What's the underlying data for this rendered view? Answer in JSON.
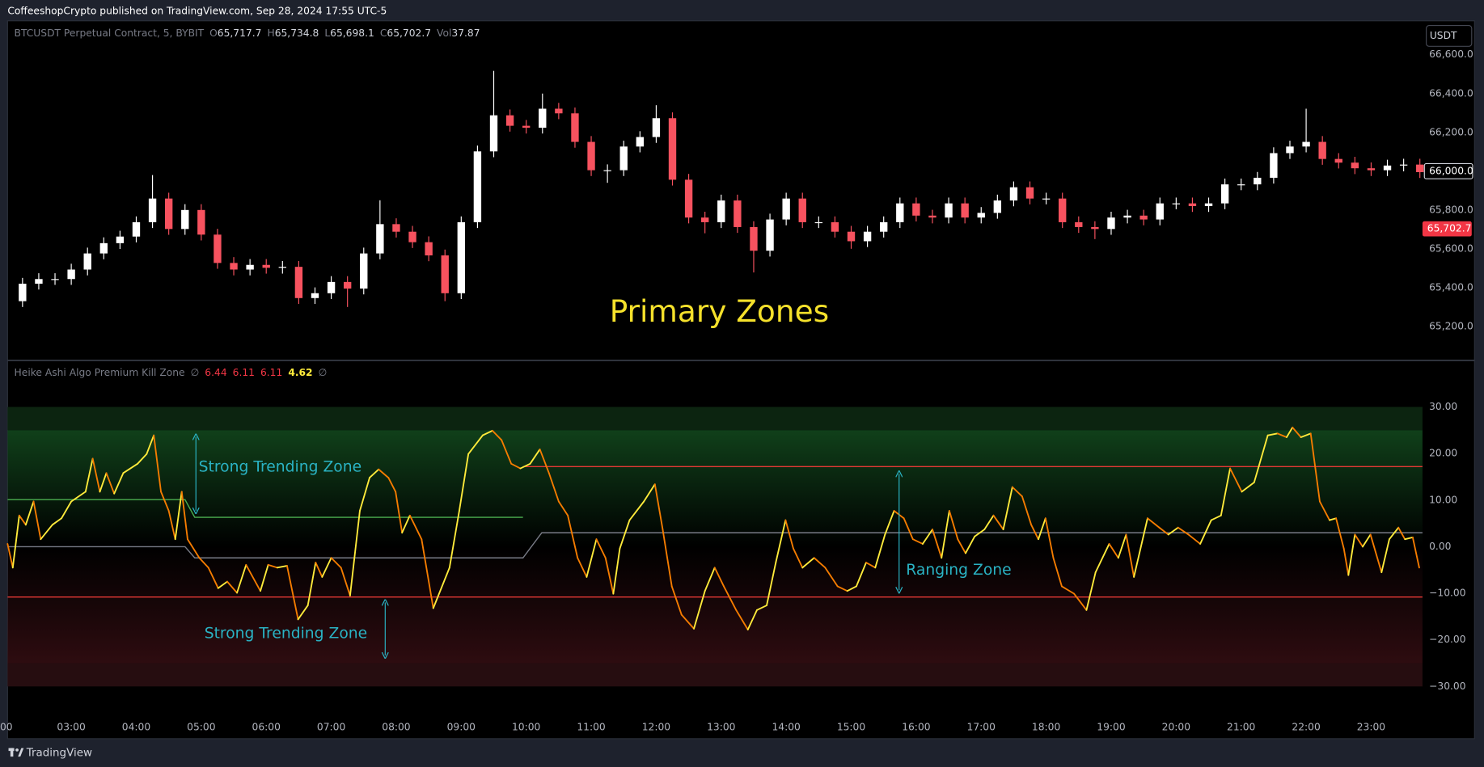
{
  "header": {
    "title": "CoffeeshopCrypto published on TradingView.com, Sep 28, 2024 17:55 UTC-5"
  },
  "footer": {
    "brand": "TradingView"
  },
  "chart_data": [
    {
      "type": "candlestick",
      "symbol": "BTCUSDT Perpetual Contract, 5, BYBIT",
      "ohlc_legend": [
        {
          "label": "O",
          "value": "65,717.7"
        },
        {
          "label": "H",
          "value": "65,734.8"
        },
        {
          "label": "L",
          "value": "65,698.1"
        },
        {
          "label": "C",
          "value": "65,702.7"
        },
        {
          "label": "Vol",
          "value": "37.87"
        }
      ],
      "currency": "USDT",
      "annotation": "Primary Zones",
      "annotation_color": "#f5e12b",
      "up_color": "#ffffff",
      "down_color": "#f7525f",
      "x": [
        2.25,
        2.5,
        2.75,
        3,
        3.25,
        3.5,
        3.75,
        4,
        4.25,
        4.5,
        4.75,
        5,
        5.25,
        5.5,
        5.75,
        6,
        6.25,
        6.5,
        6.75,
        7,
        7.25,
        7.5,
        7.75,
        8,
        8.25,
        8.5,
        8.75,
        9,
        9.25,
        9.5,
        9.75,
        10,
        10.25,
        10.5,
        10.75,
        11,
        11.25,
        11.5,
        11.75,
        12,
        12.25,
        12.5,
        12.75,
        13,
        13.25,
        13.5,
        13.75,
        14,
        14.25,
        14.5,
        14.75,
        15,
        15.25,
        15.5,
        15.75,
        16,
        16.25,
        16.5,
        16.75,
        17,
        17.25,
        17.5,
        17.75,
        18,
        18.25,
        18.5,
        18.75,
        19,
        19.25,
        19.5,
        19.75,
        20,
        20.25,
        20.5,
        20.75,
        21,
        21.25,
        21.5,
        21.75,
        22,
        22.25,
        22.5,
        22.75,
        23,
        23.25,
        23.5,
        23.75
      ],
      "open": [
        65330,
        65420,
        65444,
        65444,
        65493,
        65576,
        65629,
        65663,
        65737,
        65859,
        65702,
        65800,
        65673,
        65527,
        65493,
        65517,
        65502,
        65507,
        65346,
        65371,
        65429,
        65395,
        65576,
        65727,
        65688,
        65634,
        65566,
        65371,
        65737,
        66102,
        66288,
        66234,
        66224,
        66322,
        66298,
        66151,
        66005,
        66005,
        66127,
        66176,
        66273,
        65956,
        65761,
        65737,
        65849,
        65712,
        65590,
        65751,
        65859,
        65737,
        65737,
        65688,
        65639,
        65688,
        65737,
        65834,
        65771,
        65761,
        65834,
        65761,
        65785,
        65849,
        65917,
        65859,
        65859,
        65737,
        65712,
        65702,
        65761,
        65771,
        65751,
        65834,
        65834,
        65820,
        65834,
        65932,
        65932,
        65966,
        66093,
        66127,
        66151,
        66063,
        66044,
        66015,
        66005,
        66029,
        66034
      ],
      "high": [
        65450,
        65474,
        65474,
        65523,
        65606,
        65659,
        65693,
        65767,
        65980,
        65889,
        65830,
        65830,
        65703,
        65557,
        65547,
        65547,
        65537,
        65537,
        65401,
        65459,
        65459,
        65606,
        65850,
        65757,
        65718,
        65664,
        65596,
        65767,
        66132,
        66517,
        66318,
        66264,
        66400,
        66352,
        66328,
        66181,
        66035,
        66157,
        66206,
        66340,
        66303,
        65986,
        65791,
        65879,
        65879,
        65742,
        65781,
        65889,
        65889,
        65767,
        65767,
        65718,
        65718,
        65767,
        65864,
        65864,
        65801,
        65864,
        65864,
        65815,
        65879,
        65947,
        65947,
        65889,
        65889,
        65767,
        65742,
        65791,
        65801,
        65801,
        65864,
        65864,
        65864,
        65864,
        65962,
        65962,
        65996,
        66123,
        66157,
        66322,
        66181,
        66093,
        66074,
        66045,
        66059,
        66064,
        66064
      ],
      "low": [
        65300,
        65390,
        65414,
        65414,
        65463,
        65546,
        65599,
        65633,
        65707,
        65672,
        65672,
        65643,
        65497,
        65463,
        65463,
        65472,
        65472,
        65316,
        65316,
        65341,
        65300,
        65365,
        65546,
        65658,
        65604,
        65536,
        65330,
        65341,
        65707,
        66072,
        66204,
        66194,
        66194,
        66268,
        66121,
        65975,
        65940,
        65975,
        66097,
        66146,
        65926,
        65731,
        65680,
        65707,
        65682,
        65478,
        65560,
        65721,
        65707,
        65707,
        65658,
        65600,
        65609,
        65658,
        65707,
        65741,
        65731,
        65731,
        65731,
        65731,
        65755,
        65819,
        65829,
        65829,
        65707,
        65682,
        65650,
        65672,
        65731,
        65721,
        65721,
        65804,
        65790,
        65790,
        65804,
        65902,
        65902,
        65936,
        66063,
        66097,
        66033,
        66014,
        65985,
        65975,
        65975,
        65999,
        65965
      ],
      "close": [
        65420,
        65444,
        65444,
        65493,
        65576,
        65629,
        65663,
        65737,
        65859,
        65702,
        65800,
        65673,
        65527,
        65493,
        65517,
        65502,
        65507,
        65346,
        65371,
        65429,
        65395,
        65576,
        65727,
        65688,
        65634,
        65566,
        65371,
        65737,
        66102,
        66288,
        66234,
        66224,
        66322,
        66298,
        66151,
        66005,
        66005,
        66127,
        66176,
        66273,
        65956,
        65761,
        65737,
        65849,
        65712,
        65590,
        65751,
        65859,
        65737,
        65737,
        65688,
        65639,
        65688,
        65737,
        65834,
        65771,
        65761,
        65834,
        65761,
        65785,
        65849,
        65917,
        65859,
        65859,
        65737,
        65712,
        65702,
        65761,
        65771,
        65751,
        65834,
        65834,
        65820,
        65834,
        65932,
        65932,
        65966,
        66093,
        66127,
        66151,
        66063,
        66044,
        66015,
        66005,
        66029,
        66034,
        65995
      ],
      "xlim": [
        2.02,
        23.79
      ],
      "ylim": [
        65030,
        66775
      ],
      "yticks": [
        {
          "value": 66600,
          "label": "66,600.0"
        },
        {
          "value": 66400,
          "label": "66,400.0"
        },
        {
          "value": 66200,
          "label": "66,200.0"
        },
        {
          "value": 66000,
          "label": "66,000.0",
          "boxed": true
        },
        {
          "value": 65800,
          "label": "65,800.0"
        },
        {
          "value": 65600,
          "label": "65,600.0"
        },
        {
          "value": 65400,
          "label": "65,400.0"
        },
        {
          "value": 65200,
          "label": "65,200.0"
        }
      ],
      "last_price": {
        "value": 65702.7,
        "label": "65,702.7",
        "color": "#f23645"
      }
    },
    {
      "type": "line",
      "title": "Heike Ashi Algo Premium Kill Zone",
      "empty_symbol": "∅",
      "legend_values": [
        6.44,
        6.11,
        6.11,
        4.62
      ],
      "legend_colors": [
        "#f23645",
        "#f23645",
        "#f23645",
        "#ffeb3b"
      ],
      "annotations": [
        "Strong Trending Zone",
        "Strong Trending Zone",
        "Ranging Zone"
      ],
      "annotation_color": "#2ab3c4",
      "up_color": "#ffeb3b",
      "down_color": "#f57c00",
      "x": [
        2.02,
        2.1,
        2.2,
        2.3,
        2.42,
        2.53,
        2.71,
        2.85,
        3.0,
        3.22,
        3.33,
        3.44,
        3.54,
        3.66,
        3.8,
        4.02,
        4.16,
        4.27,
        4.38,
        4.5,
        4.6,
        4.7,
        4.79,
        4.97,
        5.11,
        5.26,
        5.4,
        5.55,
        5.69,
        5.91,
        6.03,
        6.17,
        6.32,
        6.49,
        6.64,
        6.76,
        6.86,
        7.0,
        7.15,
        7.29,
        7.44,
        7.59,
        7.73,
        7.88,
        7.99,
        8.09,
        8.21,
        8.39,
        8.57,
        8.82,
        8.97,
        9.11,
        9.33,
        9.48,
        9.62,
        9.77,
        9.91,
        10.06,
        10.21,
        10.35,
        10.5,
        10.64,
        10.79,
        10.93,
        11.08,
        11.22,
        11.34,
        11.44,
        11.59,
        11.81,
        11.98,
        12.1,
        12.24,
        12.39,
        12.58,
        12.75,
        12.9,
        13.04,
        13.23,
        13.41,
        13.55,
        13.7,
        13.84,
        13.99,
        14.11,
        14.25,
        14.43,
        14.6,
        14.79,
        14.94,
        15.08,
        15.23,
        15.37,
        15.52,
        15.66,
        15.81,
        15.95,
        16.1,
        16.25,
        16.39,
        16.51,
        16.64,
        16.76,
        16.9,
        17.05,
        17.19,
        17.34,
        17.48,
        17.63,
        17.77,
        17.88,
        17.99,
        18.11,
        18.24,
        18.43,
        18.62,
        18.76,
        18.97,
        19.11,
        19.23,
        19.35,
        19.56,
        19.74,
        19.88,
        20.03,
        20.19,
        20.37,
        20.54,
        20.69,
        20.83,
        21.01,
        21.2,
        21.41,
        21.56,
        21.7,
        21.79,
        21.92,
        22.07,
        22.21,
        22.36,
        22.46,
        22.58,
        22.65,
        22.75,
        22.87,
        22.99,
        23.16,
        23.28,
        23.42,
        23.52,
        23.64,
        23.74
      ],
      "values": [
        0.6,
        -4.5,
        6.7,
        4.7,
        9.7,
        1.6,
        4.7,
        6.1,
        9.7,
        11.8,
        18.9,
        11.8,
        15.8,
        11.4,
        15.8,
        17.8,
        19.9,
        23.9,
        11.8,
        7.7,
        1.6,
        11.8,
        1.6,
        -2.4,
        -4.5,
        -8.9,
        -7.5,
        -9.9,
        -3.9,
        -9.5,
        -3.9,
        -4.5,
        -4.1,
        -15.6,
        -12.6,
        -3.4,
        -6.5,
        -2.4,
        -4.5,
        -10.5,
        7.7,
        14.8,
        16.6,
        14.8,
        11.8,
        3.0,
        6.7,
        1.6,
        -13.2,
        -4.5,
        7.7,
        19.9,
        23.9,
        24.9,
        22.9,
        17.8,
        16.8,
        17.8,
        20.9,
        15.8,
        9.7,
        6.7,
        -2.4,
        -6.5,
        1.6,
        -2.4,
        -10.1,
        -0.4,
        5.7,
        9.7,
        13.4,
        3.7,
        -8.5,
        -14.6,
        -17.6,
        -9.5,
        -4.5,
        -8.5,
        -13.6,
        -17.8,
        -13.6,
        -12.6,
        -3.4,
        5.7,
        -0.4,
        -4.5,
        -2.4,
        -4.5,
        -8.5,
        -9.5,
        -8.5,
        -3.4,
        -4.5,
        2.6,
        7.7,
        6.1,
        1.6,
        0.6,
        3.7,
        -2.4,
        7.7,
        1.6,
        -1.4,
        2.2,
        3.7,
        6.7,
        3.7,
        12.8,
        10.8,
        4.7,
        1.6,
        6.1,
        -2.4,
        -8.5,
        -10.1,
        -13.6,
        -5.5,
        0.6,
        -2.4,
        2.6,
        -6.5,
        6.1,
        4.1,
        2.6,
        4.1,
        2.6,
        0.6,
        5.7,
        6.7,
        16.8,
        11.8,
        13.8,
        23.9,
        24.3,
        23.5,
        25.6,
        23.5,
        24.3,
        9.7,
        5.7,
        6.1,
        -0.4,
        -6.1,
        2.6,
        0.0,
        2.6,
        -5.5,
        1.6,
        4.1,
        1.6,
        2.0,
        -4.5
      ],
      "levels": [
        {
          "color": "#4caf50",
          "x": [
            2.02,
            4.75,
            4.9,
            9.95
          ],
          "values": [
            10.1,
            10.1,
            6.3,
            6.3
          ]
        },
        {
          "color": "#e53935",
          "x": [
            9.95,
            23.79
          ],
          "values": [
            17.2,
            17.2
          ]
        },
        {
          "color": "#e53935",
          "x": [
            2.02,
            23.79
          ],
          "values": [
            -10.8,
            -10.8
          ]
        },
        {
          "color": "#787b86",
          "x": [
            2.02,
            4.75,
            4.9,
            9.95,
            10.24,
            23.79
          ],
          "values": [
            0.0,
            0.0,
            -2.4,
            -2.4,
            3.0,
            3.0
          ]
        }
      ],
      "zones": [
        {
          "from": 25,
          "to": 30,
          "color": "#0c2410",
          "gradient": false
        },
        {
          "from": 0,
          "to": 25,
          "color": "#10401a",
          "gradient": true
        },
        {
          "from": -25,
          "to": 0,
          "color": "#2e0c10",
          "gradient": true
        },
        {
          "from": -30,
          "to": -25,
          "color": "#260d10",
          "gradient": false
        }
      ],
      "xlim": [
        2.02,
        23.79
      ],
      "ylim": [
        -41.2,
        39.8
      ],
      "yticks": [
        {
          "value": 30,
          "label": "30.00"
        },
        {
          "value": 20,
          "label": "20.00"
        },
        {
          "value": 10,
          "label": "10.00"
        },
        {
          "value": 0,
          "label": "0.00"
        },
        {
          "value": -10,
          "label": "−10.00"
        },
        {
          "value": -20,
          "label": "−20.00"
        },
        {
          "value": -30,
          "label": "−30.00"
        }
      ],
      "xticks": [
        {
          "value": 2,
          "label": "00"
        },
        {
          "value": 3,
          "label": "03:00"
        },
        {
          "value": 4,
          "label": "04:00"
        },
        {
          "value": 5,
          "label": "05:00"
        },
        {
          "value": 6,
          "label": "06:00"
        },
        {
          "value": 7,
          "label": "07:00"
        },
        {
          "value": 8,
          "label": "08:00"
        },
        {
          "value": 9,
          "label": "09:00"
        },
        {
          "value": 10,
          "label": "10:00"
        },
        {
          "value": 11,
          "label": "11:00"
        },
        {
          "value": 12,
          "label": "12:00"
        },
        {
          "value": 13,
          "label": "13:00"
        },
        {
          "value": 14,
          "label": "14:00"
        },
        {
          "value": 15,
          "label": "15:00"
        },
        {
          "value": 16,
          "label": "16:00"
        },
        {
          "value": 17,
          "label": "17:00"
        },
        {
          "value": 18,
          "label": "18:00"
        },
        {
          "value": 19,
          "label": "19:00"
        },
        {
          "value": 20,
          "label": "20:00"
        },
        {
          "value": 21,
          "label": "21:00"
        },
        {
          "value": 22,
          "label": "22:00"
        },
        {
          "value": 23,
          "label": "23:00"
        }
      ]
    }
  ]
}
